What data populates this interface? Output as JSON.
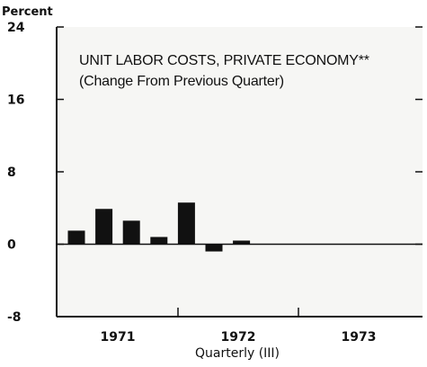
{
  "chart_data": {
    "type": "bar",
    "title": "UNIT LABOR COSTS, PRIVATE ECONOMY**",
    "subtitle": "(Change From Previous Quarter)",
    "ylabel": "Percent",
    "xlabel": "Quarterly (III)",
    "ylim": [
      -8,
      24
    ],
    "yticks": [
      "24",
      "16",
      "8",
      "0",
      "-8"
    ],
    "year_labels": [
      "1971",
      "1972",
      "1973"
    ],
    "values": [
      1.5,
      3.9,
      2.6,
      0.8,
      4.6,
      -0.8,
      0.4
    ],
    "grid": false,
    "colors": {
      "bar": "#111111",
      "axis": "#111111",
      "text": "#111111",
      "panel": "#f6f6f4"
    }
  }
}
